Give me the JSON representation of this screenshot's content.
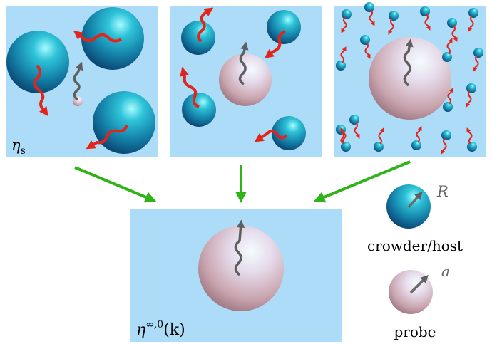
{
  "panels": {
    "small_crowders_label": "η",
    "small_crowders_label_sub": "s",
    "result_label": "η",
    "result_label_sup": "∞,0",
    "result_label_arg": "(k)"
  },
  "legend": {
    "crowder_caption": "crowder/host",
    "crowder_radius_symbol": "R",
    "probe_caption": "probe",
    "probe_radius_symbol": "a"
  },
  "colors": {
    "panel_background": "#acdcf8",
    "arrow_green": "#2fb318",
    "motion_red": "#e3241b",
    "motion_gray": "#5f5f5f",
    "crowder_teal": "#1a8cb0",
    "probe_pink": "#d8b9c4"
  },
  "icons": [
    "crowder-sphere-icon",
    "probe-sphere-icon",
    "wavy-motion-arrow-icon",
    "flow-arrow-icon"
  ]
}
